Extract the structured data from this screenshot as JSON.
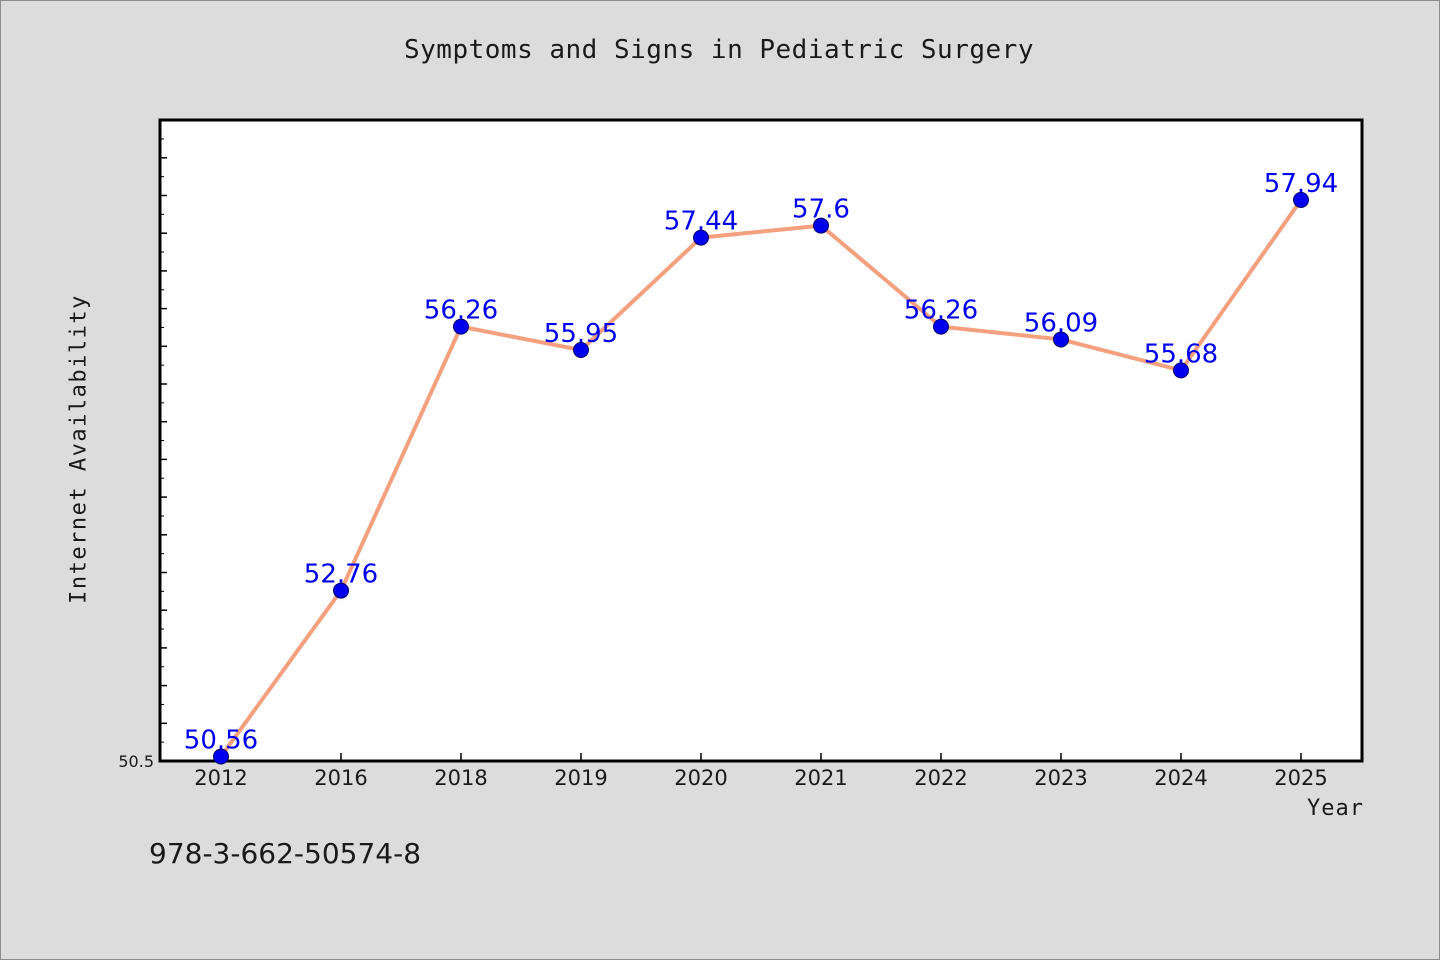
{
  "chart_data": {
    "type": "line",
    "title": "Symptoms and Signs in Pediatric Surgery",
    "xlabel": "Year",
    "ylabel": "Internet Availability",
    "categories": [
      "2012",
      "2016",
      "2018",
      "2019",
      "2020",
      "2021",
      "2022",
      "2023",
      "2024",
      "2025"
    ],
    "values": [
      50.56,
      52.76,
      56.26,
      55.95,
      57.44,
      57.6,
      56.26,
      56.09,
      55.68,
      57.94
    ],
    "data_labels": [
      "50.56",
      "52.76",
      "56.26",
      "55.95",
      "57.44",
      "57.6",
      "56.26",
      "56.09",
      "55.68",
      "57.94"
    ],
    "ylim": [
      50.5,
      59.0
    ],
    "ytick_labels": [
      "50.5"
    ],
    "grid": false,
    "line_color": "#f4a07e",
    "marker_color": "#0000ee",
    "label_color": "#0000ee"
  },
  "footer": {
    "isbn": "978-3-662-50574-8"
  }
}
